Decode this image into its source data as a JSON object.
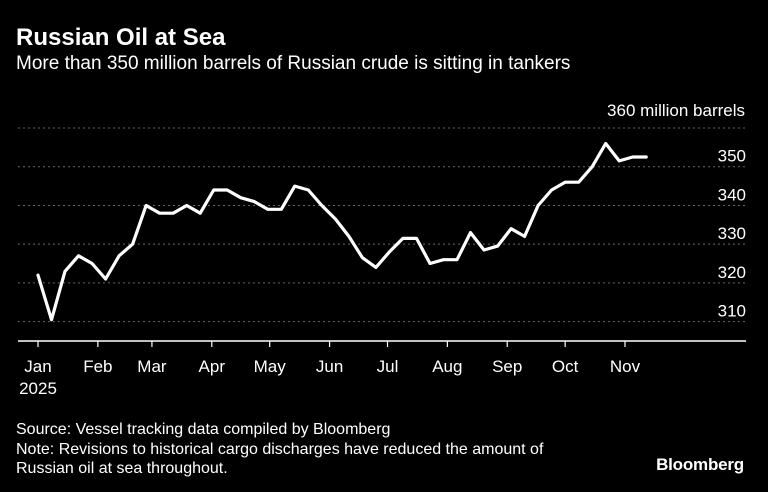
{
  "title": "Russian Oil at Sea",
  "subtitle": "More than 350 million barrels of Russian crude is sitting in tankers",
  "source": "Source: Vessel tracking data compiled by Bloomberg",
  "note_line1": "Note: Revisions to historical cargo discharges have reduced the amount of",
  "note_line2": "Russian oil at sea throughout.",
  "brand": "Bloomberg",
  "colors": {
    "background": "#000000",
    "line": "#ffffff",
    "grid": "#666666",
    "text": "#ffffff"
  },
  "chart_data": {
    "type": "line",
    "title": "Russian Oil at Sea",
    "ylabel": "360 million barrels",
    "ylim": [
      305,
      360
    ],
    "yticks": [
      310,
      320,
      330,
      340,
      350
    ],
    "ytick_labels": [
      "310",
      "320",
      "330",
      "340",
      "350"
    ],
    "grid": "horizontal",
    "x_start": "2025-01-01",
    "x_end": "2025-11-30",
    "x_tick_dates": [
      "2025-01-01",
      "2025-02-01",
      "2025-03-01",
      "2025-04-01",
      "2025-05-01",
      "2025-06-01",
      "2025-07-01",
      "2025-08-01",
      "2025-09-01",
      "2025-10-01",
      "2025-11-01"
    ],
    "xtick_labels": [
      "Jan",
      "Feb",
      "Mar",
      "Apr",
      "May",
      "Jun",
      "Jul",
      "Aug",
      "Sep",
      "Oct",
      "Nov"
    ],
    "xtick_year": "2025",
    "series": [
      {
        "x": [
          "2025-01-01",
          "2025-01-08",
          "2025-01-15",
          "2025-01-22",
          "2025-01-29",
          "2025-02-05",
          "2025-02-12",
          "2025-02-19",
          "2025-02-26",
          "2025-03-05",
          "2025-03-12",
          "2025-03-19",
          "2025-03-26",
          "2025-04-02",
          "2025-04-09",
          "2025-04-16",
          "2025-04-23",
          "2025-04-30",
          "2025-05-07",
          "2025-05-14",
          "2025-05-21",
          "2025-05-28",
          "2025-06-04",
          "2025-06-11",
          "2025-06-18",
          "2025-06-25",
          "2025-07-02",
          "2025-07-09",
          "2025-07-16",
          "2025-07-23",
          "2025-07-30",
          "2025-08-06",
          "2025-08-13",
          "2025-08-20",
          "2025-08-27",
          "2025-09-03",
          "2025-09-10",
          "2025-09-17",
          "2025-09-24",
          "2025-10-01",
          "2025-10-08",
          "2025-10-15",
          "2025-10-22",
          "2025-10-29",
          "2025-11-05",
          "2025-11-12"
        ],
        "y": [
          322,
          310.5,
          323,
          327,
          325,
          321,
          327,
          330,
          340,
          338,
          338,
          340,
          338,
          344,
          344,
          342,
          341,
          339,
          339,
          345,
          344,
          340,
          336.5,
          332,
          326.5,
          324,
          328,
          331.5,
          331.5,
          325,
          326,
          326,
          333,
          328.5,
          329.5,
          334,
          332,
          340,
          344,
          346,
          346,
          350,
          356,
          351.5,
          352.5,
          352.5
        ]
      }
    ]
  }
}
